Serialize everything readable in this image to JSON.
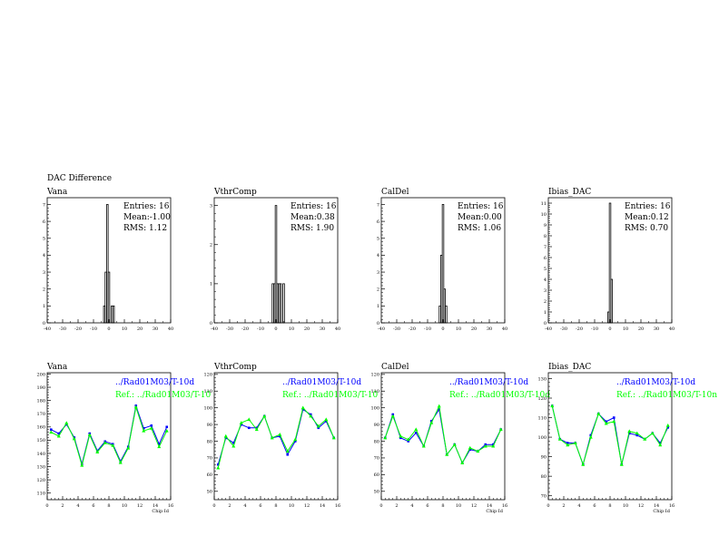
{
  "page": {
    "title": "DAC Difference"
  },
  "colors": {
    "histogram": "#000000",
    "series_current": "#0000ff",
    "series_reference": "#00ff00",
    "axis": "#000000"
  },
  "chart_data": [
    {
      "type": "bar",
      "title": "Vana",
      "stats": {
        "entries": "Entries:  16",
        "mean": "Mean:-1.00",
        "rms": "RMS: 1.12"
      },
      "xlim": [
        -40,
        40
      ],
      "ylim": [
        0,
        7.4
      ],
      "xticks": [
        -40,
        -30,
        -20,
        -10,
        0,
        10,
        20,
        30,
        40
      ],
      "yticks": [
        0,
        1,
        2,
        3,
        4,
        5,
        6,
        7
      ],
      "bin_width": 1,
      "bins": [
        {
          "x": -3,
          "y": 1
        },
        {
          "x": -2,
          "y": 3
        },
        {
          "x": -1,
          "y": 7
        },
        {
          "x": 0,
          "y": 3
        },
        {
          "x": 2,
          "y": 1
        },
        {
          "x": 3,
          "y": 1
        }
      ]
    },
    {
      "type": "bar",
      "title": "VthrComp",
      "stats": {
        "entries": "Entries:  16",
        "mean": "Mean:0.38",
        "rms": "RMS: 1.90"
      },
      "xlim": [
        -40,
        40
      ],
      "ylim": [
        0,
        3.2
      ],
      "xticks": [
        -40,
        -30,
        -20,
        -10,
        0,
        10,
        20,
        30,
        40
      ],
      "yticks": [
        0,
        1,
        2,
        3
      ],
      "bin_width": 1,
      "bins": [
        {
          "x": -2,
          "y": 1
        },
        {
          "x": -1,
          "y": 1
        },
        {
          "x": 0,
          "y": 3
        },
        {
          "x": 1,
          "y": 1
        },
        {
          "x": 2,
          "y": 1
        },
        {
          "x": 3,
          "y": 1
        },
        {
          "x": 5,
          "y": 1
        }
      ]
    },
    {
      "type": "bar",
      "title": "CalDel",
      "stats": {
        "entries": "Entries:  16",
        "mean": "Mean:0.00",
        "rms": "RMS: 1.06"
      },
      "xlim": [
        -40,
        40
      ],
      "ylim": [
        0,
        7.4
      ],
      "xticks": [
        -40,
        -30,
        -20,
        -10,
        0,
        10,
        20,
        30,
        40
      ],
      "yticks": [
        0,
        1,
        2,
        3,
        4,
        5,
        6,
        7
      ],
      "bin_width": 1,
      "bins": [
        {
          "x": -2,
          "y": 1
        },
        {
          "x": -1,
          "y": 4
        },
        {
          "x": 0,
          "y": 7
        },
        {
          "x": 1,
          "y": 2
        },
        {
          "x": 2,
          "y": 1
        }
      ]
    },
    {
      "type": "bar",
      "title": "Ibias_DAC",
      "stats": {
        "entries": "Entries:  16",
        "mean": "Mean:0.12",
        "rms": "RMS: 0.70"
      },
      "xlim": [
        -40,
        40
      ],
      "ylim": [
        0,
        11.5
      ],
      "xticks": [
        -40,
        -30,
        -20,
        -10,
        0,
        10,
        20,
        30,
        40
      ],
      "yticks": [
        0,
        1,
        2,
        3,
        4,
        5,
        6,
        7,
        8,
        9,
        10,
        11
      ],
      "bin_width": 1,
      "bins": [
        {
          "x": -1,
          "y": 1
        },
        {
          "x": 0,
          "y": 11
        },
        {
          "x": 1,
          "y": 4
        }
      ]
    },
    {
      "type": "line",
      "title": "Vana",
      "xlabel": "Chip Id",
      "xlim": [
        0,
        16
      ],
      "ylim": [
        105,
        201
      ],
      "xticks": [
        0,
        2,
        4,
        6,
        8,
        10,
        12,
        14,
        16
      ],
      "yticks": [
        110,
        120,
        130,
        140,
        150,
        160,
        170,
        180,
        190,
        200
      ],
      "x": [
        0.5,
        1.5,
        2.5,
        3.5,
        4.5,
        5.5,
        6.5,
        7.5,
        8.5,
        9.5,
        10.5,
        11.5,
        12.5,
        13.5,
        14.5,
        15.5
      ],
      "legend": [
        "../Rad01M03/T-10d",
        "Ref.: ../Rad01M03/T-10"
      ],
      "series": [
        {
          "name": "../Rad01M03/T-10d",
          "values": [
            158,
            155,
            162,
            152,
            132,
            155,
            142,
            149,
            147,
            134,
            145,
            176,
            159,
            161,
            147,
            160
          ]
        },
        {
          "name": "Ref.: ../Rad01M03/T-10",
          "values": [
            156,
            153,
            163,
            151,
            131,
            154,
            141,
            148,
            146,
            133,
            144,
            175,
            157,
            159,
            145,
            157
          ]
        }
      ]
    },
    {
      "type": "line",
      "title": "VthrComp",
      "xlabel": "",
      "xlim": [
        0,
        16
      ],
      "ylim": [
        45,
        121
      ],
      "xticks": [
        0,
        2,
        4,
        6,
        8,
        10,
        12,
        14,
        16
      ],
      "yticks": [
        50,
        60,
        70,
        80,
        90,
        100,
        110,
        120
      ],
      "x": [
        0.5,
        1.5,
        2.5,
        3.5,
        4.5,
        5.5,
        6.5,
        7.5,
        8.5,
        9.5,
        10.5,
        11.5,
        12.5,
        13.5,
        14.5,
        15.5
      ],
      "legend": [
        "../Rad01M03/T-10d",
        "Ref.: ../Rad01M03/T-10"
      ],
      "series": [
        {
          "name": "../Rad01M03/T-10d",
          "values": [
            66,
            82,
            79,
            90,
            88,
            88,
            95,
            82,
            83,
            72,
            80,
            99,
            96,
            88,
            92,
            82
          ]
        },
        {
          "name": "Ref.: ../Rad01M03/T-10",
          "values": [
            64,
            83,
            77,
            91,
            93,
            87,
            95,
            82,
            84,
            74,
            81,
            100,
            95,
            89,
            93,
            82
          ]
        }
      ]
    },
    {
      "type": "line",
      "title": "CalDel",
      "xlabel": "Chip Id",
      "xlim": [
        0,
        16
      ],
      "ylim": [
        45,
        121
      ],
      "xticks": [
        0,
        2,
        4,
        6,
        8,
        10,
        12,
        14,
        16
      ],
      "yticks": [
        50,
        60,
        70,
        80,
        90,
        100,
        110,
        120
      ],
      "x": [
        0.5,
        1.5,
        2.5,
        3.5,
        4.5,
        5.5,
        6.5,
        7.5,
        8.5,
        9.5,
        10.5,
        11.5,
        12.5,
        13.5,
        14.5,
        15.5
      ],
      "legend": [
        "../Rad01M03/T-10d",
        "Ref.: ../Rad01M03/T-10d"
      ],
      "series": [
        {
          "name": "../Rad01M03/T-10d",
          "values": [
            82,
            96,
            82,
            80,
            85,
            77,
            92,
            99,
            72,
            78,
            67,
            75,
            74,
            78,
            78,
            87
          ]
        },
        {
          "name": "Ref.: ../Rad01M03/T-10d",
          "values": [
            82,
            95,
            83,
            81,
            87,
            77,
            91,
            101,
            72,
            78,
            67,
            76,
            74,
            77,
            77,
            87
          ]
        }
      ]
    },
    {
      "type": "line",
      "title": "Ibias_DAC",
      "xlabel": "Chip Id",
      "xlim": [
        0,
        16
      ],
      "ylim": [
        68,
        133
      ],
      "xticks": [
        0,
        2,
        4,
        6,
        8,
        10,
        12,
        14,
        16
      ],
      "yticks": [
        70,
        80,
        90,
        100,
        110,
        120,
        130
      ],
      "x": [
        0.5,
        1.5,
        2.5,
        3.5,
        4.5,
        5.5,
        6.5,
        7.5,
        8.5,
        9.5,
        10.5,
        11.5,
        12.5,
        13.5,
        14.5,
        15.5
      ],
      "legend": [
        "../Rad01M03/T-10d",
        "Ref.: ../Rad01M03/T-10n"
      ],
      "series": [
        {
          "name": "../Rad01M03/T-10d",
          "values": [
            116,
            99,
            97,
            97,
            86,
            101,
            112,
            108,
            110,
            86,
            102,
            101,
            99,
            102,
            97,
            105
          ]
        },
        {
          "name": "Ref.: ../Rad01M03/T-10n",
          "values": [
            116,
            99,
            96,
            97,
            86,
            100,
            112,
            107,
            108,
            86,
            103,
            102,
            99,
            102,
            96,
            106
          ]
        }
      ]
    }
  ]
}
